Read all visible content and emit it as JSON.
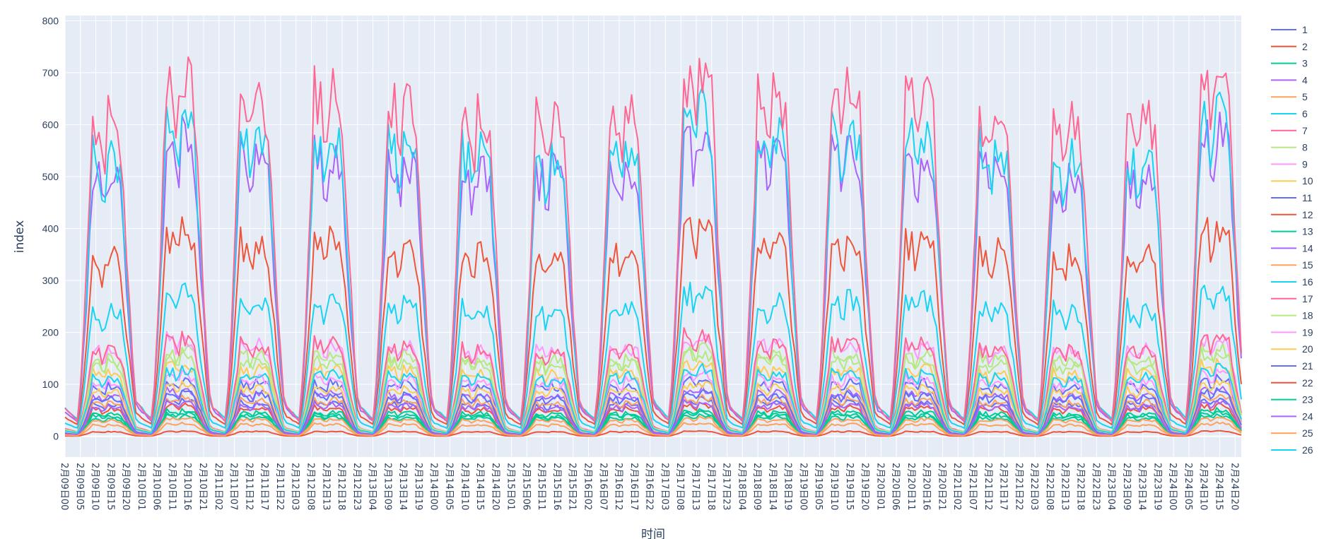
{
  "chart_data": {
    "type": "line",
    "xlabel": "时间",
    "ylabel": "index",
    "ylim": [
      -40,
      810
    ],
    "y_ticks": [
      0,
      100,
      200,
      300,
      400,
      500,
      600,
      700,
      800
    ],
    "grid": true,
    "legend_position": "right",
    "x_start": {
      "day": 9,
      "hour": 0
    },
    "x_hours": 383,
    "x_tick_labels": [
      "2月09日00",
      "2月09日05",
      "2月09日10",
      "2月09日15",
      "2月09日20",
      "2月10日01",
      "2月10日06",
      "2月10日11",
      "2月10日16",
      "2月10日21",
      "2月11日02",
      "2月11日07",
      "2月11日12",
      "2月11日17",
      "2月11日22",
      "2月12日03",
      "2月12日08",
      "2月12日13",
      "2月12日18",
      "2月12日23",
      "2月13日04",
      "2月13日09",
      "2月13日14",
      "2月13日19",
      "2月14日00",
      "2月14日05",
      "2月14日10",
      "2月14日15",
      "2月14日20",
      "2月15日01",
      "2月15日06",
      "2月15日11",
      "2月15日16",
      "2月15日21",
      "2月16日02",
      "2月16日07",
      "2月16日12",
      "2月16日17",
      "2月16日22",
      "2月17日03",
      "2月17日08",
      "2月17日13",
      "2月17日18",
      "2月17日23",
      "2月18日04",
      "2月18日09",
      "2月18日14",
      "2月18日19",
      "2月19日00",
      "2月19日05",
      "2月19日10",
      "2月19日15",
      "2月19日20",
      "2月20日01",
      "2月20日06",
      "2月20日11",
      "2月20日16",
      "2月20日21",
      "2月21日02",
      "2月21日07",
      "2月21日12",
      "2月21日17",
      "2月21日22",
      "2月22日03",
      "2月22日08",
      "2月22日13",
      "2月22日18",
      "2月22日23",
      "2月23日04",
      "2月23日09",
      "2月23日14",
      "2月23日19",
      "2月24日00",
      "2月24日05",
      "2月24日10",
      "2月24日15",
      "2月24日20"
    ],
    "daily_peak_scale": [
      0.88,
      1.0,
      0.94,
      0.95,
      0.93,
      0.89,
      0.88,
      0.9,
      1.02,
      0.95,
      0.96,
      0.95,
      0.9,
      0.88,
      0.89,
      1.02
    ],
    "series": [
      {
        "name": "1",
        "color": "#636efa",
        "peak": 70,
        "base": 6
      },
      {
        "name": "2",
        "color": "#ef553b",
        "peak": 400,
        "base": 80
      },
      {
        "name": "3",
        "color": "#00cc96",
        "peak": 40,
        "base": 4
      },
      {
        "name": "4",
        "color": "#ab63fa",
        "peak": 580,
        "base": 95
      },
      {
        "name": "5",
        "color": "#ffa15a",
        "peak": 25,
        "base": 3
      },
      {
        "name": "6",
        "color": "#19d3f3",
        "peak": 620,
        "base": 115
      },
      {
        "name": "7",
        "color": "#ff6692",
        "peak": 700,
        "base": 85
      },
      {
        "name": "8",
        "color": "#b6e880",
        "peak": 170,
        "base": 30
      },
      {
        "name": "9",
        "color": "#ff97ff",
        "peak": 190,
        "base": 25
      },
      {
        "name": "10",
        "color": "#fecb52",
        "peak": 140,
        "base": 20
      },
      {
        "name": "11",
        "color": "#636efa",
        "peak": 110,
        "base": 12
      },
      {
        "name": "12",
        "color": "#ef553b",
        "peak": 60,
        "base": 6
      },
      {
        "name": "13",
        "color": "#00cc96",
        "peak": 50,
        "base": 5
      },
      {
        "name": "14",
        "color": "#ab63fa",
        "peak": 90,
        "base": 8
      },
      {
        "name": "15",
        "color": "#ffa15a",
        "peak": 75,
        "base": 7
      },
      {
        "name": "16",
        "color": "#19d3f3",
        "peak": 280,
        "base": 55
      },
      {
        "name": "17",
        "color": "#ff6692",
        "peak": 190,
        "base": 22
      },
      {
        "name": "18",
        "color": "#b6e880",
        "peak": 160,
        "base": 25
      },
      {
        "name": "19",
        "color": "#ff97ff",
        "peak": 120,
        "base": 15
      },
      {
        "name": "20",
        "color": "#fecb52",
        "peak": 100,
        "base": 10
      },
      {
        "name": "21",
        "color": "#636efa",
        "peak": 85,
        "base": 9
      },
      {
        "name": "22",
        "color": "#ef553b",
        "peak": 10,
        "base": 1
      },
      {
        "name": "23",
        "color": "#00cc96",
        "peak": 45,
        "base": 5
      },
      {
        "name": "24",
        "color": "#ab63fa",
        "peak": 65,
        "base": 6
      },
      {
        "name": "25",
        "color": "#ffa15a",
        "peak": 35,
        "base": 3
      },
      {
        "name": "26",
        "color": "#19d3f3",
        "peak": 130,
        "base": 20
      }
    ]
  }
}
